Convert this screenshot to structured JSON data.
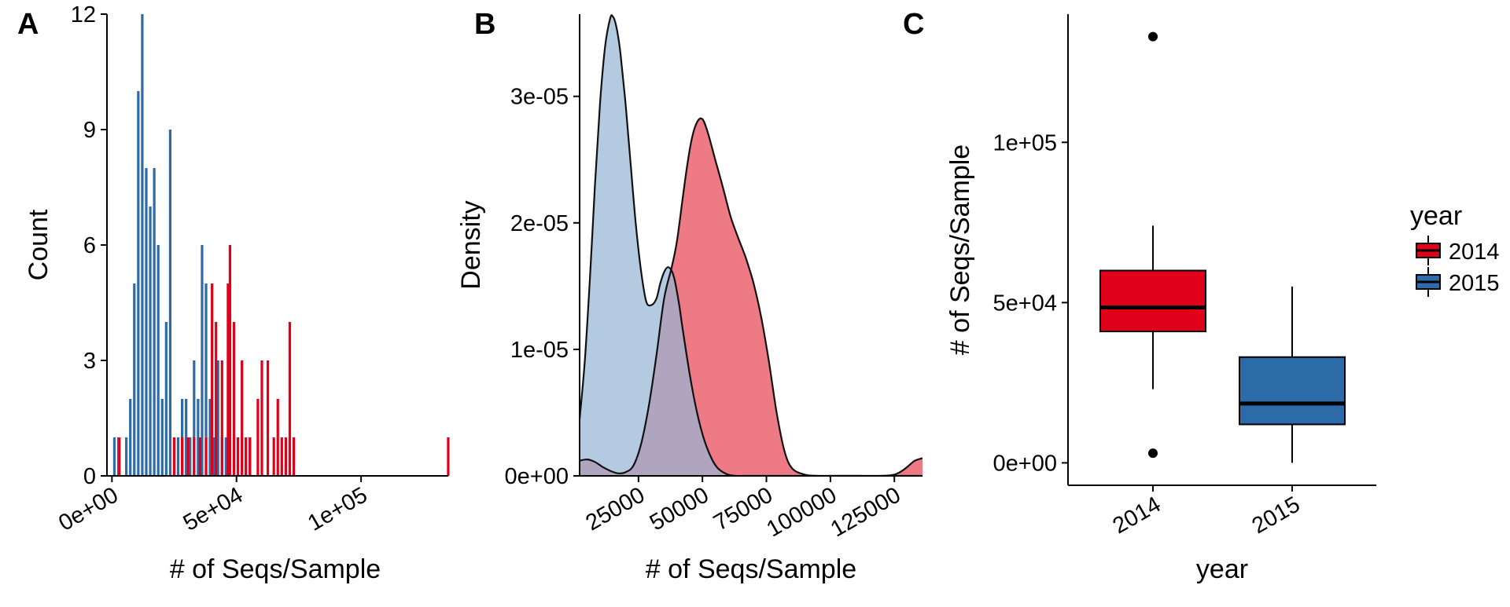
{
  "colors": {
    "y2014": "#e0001a",
    "y2015": "#2c6aa8",
    "density2014": "#ee7a86",
    "density2015": "#97b5d4",
    "overlap": "#8a7092"
  },
  "chart_data": [
    {
      "panel": "A",
      "type": "bar",
      "subtype": "histogram",
      "xlabel": "# of Seqs/Sample",
      "ylabel": "Count",
      "xlim": [
        -2000,
        135000
      ],
      "ylim": [
        0,
        12
      ],
      "x_ticks": [
        0,
        50000,
        100000
      ],
      "x_tick_labels": [
        "0e+00",
        "5e+04",
        "1e+05"
      ],
      "y_ticks": [
        0,
        3,
        6,
        9,
        12
      ],
      "y_tick_labels": [
        "0",
        "3",
        "6",
        "9",
        "12"
      ],
      "series": [
        {
          "name": "2015",
          "color_key": "y2015",
          "x": [
            0,
            1600,
            3200,
            4800,
            6400,
            8000,
            9600,
            11200,
            12800,
            14400,
            16000,
            17600,
            19200,
            20800,
            22400,
            24000,
            25600,
            27200,
            28800,
            30400,
            32000,
            33600,
            35200,
            36800,
            38400,
            40000,
            41600,
            43200,
            44800,
            46400,
            48000,
            49600,
            51200,
            52800,
            54400
          ],
          "values": [
            1,
            1,
            0,
            1,
            2,
            5,
            10,
            12,
            8,
            7,
            8,
            6,
            2,
            4,
            9,
            1,
            1,
            2,
            2,
            1,
            3,
            2,
            6,
            5,
            2,
            1,
            3,
            1,
            1,
            1,
            1,
            1,
            1,
            1,
            1
          ]
        },
        {
          "name": "2014",
          "color_key": "y2014",
          "x": [
            2000,
            24000,
            27200,
            29600,
            32000,
            34400,
            36800,
            39200,
            40800,
            43200,
            45600,
            46400,
            48000,
            49600,
            51200,
            52800,
            54400,
            57600,
            59200,
            61600,
            64000,
            65600,
            67200,
            68800,
            70400,
            72000,
            134000
          ],
          "values": [
            1,
            1,
            1,
            1,
            1,
            1,
            1,
            5,
            4,
            3,
            5,
            6,
            4,
            1,
            3,
            1,
            1,
            2,
            3,
            3,
            1,
            2,
            1,
            1,
            4,
            1,
            1
          ]
        }
      ]
    },
    {
      "panel": "B",
      "type": "area",
      "subtype": "density",
      "xlabel": "# of Seqs/Sample",
      "ylabel": "Density",
      "xlim": [
        2000,
        136000
      ],
      "ylim": [
        0,
        3.65e-05
      ],
      "x_ticks": [
        25000,
        50000,
        75000,
        100000,
        125000
      ],
      "x_tick_labels": [
        "25000",
        "50000",
        "75000",
        "100000",
        "125000"
      ],
      "y_ticks": [
        0,
        1e-05,
        2e-05,
        3e-05
      ],
      "y_tick_labels": [
        "0e+00",
        "1e-05",
        "2e-05",
        "3e-05"
      ],
      "series": [
        {
          "name": "2014",
          "color_key": "density2014",
          "x": [
            2000,
            5000,
            8000,
            11000,
            14000,
            17000,
            20000,
            23000,
            26000,
            29000,
            32000,
            35000,
            38000,
            40000,
            42000,
            44000,
            46000,
            48000,
            50000,
            52000,
            55000,
            58000,
            61000,
            64000,
            67000,
            70000,
            73000,
            76000,
            79000,
            82000,
            85000,
            90000,
            95000,
            100000,
            110000,
            120000,
            125000,
            128000,
            130000,
            133000,
            136000
          ],
          "values": [
            1.2e-06,
            1.3e-06,
            1.1e-06,
            7e-07,
            4e-07,
            2e-07,
            3e-07,
            8e-07,
            2.5e-06,
            5.5e-06,
            9.5e-06,
            1.4e-05,
            1.65e-05,
            1.85e-05,
            2.15e-05,
            2.45e-05,
            2.68e-05,
            2.8e-05,
            2.82e-05,
            2.72e-05,
            2.5e-05,
            2.28e-05,
            2.05e-05,
            1.88e-05,
            1.72e-05,
            1.52e-05,
            1.25e-05,
            9e-06,
            5e-06,
            2e-06,
            6e-07,
            1e-07,
            0,
            0,
            0,
            0,
            1e-07,
            4e-07,
            7e-07,
            1.2e-06,
            1.4e-06
          ]
        },
        {
          "name": "2015",
          "color_key": "density2015",
          "x": [
            2000,
            4000,
            6000,
            8000,
            10000,
            12000,
            14000,
            15000,
            16000,
            17000,
            18000,
            20000,
            22000,
            24000,
            26000,
            28000,
            30000,
            32000,
            33500,
            35000,
            36500,
            38000,
            39000,
            40000,
            41000,
            42000,
            44000,
            46000,
            48000,
            50000,
            52000,
            54000,
            56000,
            58000,
            60000,
            63000,
            66000,
            70000,
            80000,
            100000,
            136000
          ],
          "values": [
            4.5e-06,
            9e-06,
            1.55e-05,
            2.3e-05,
            2.95e-05,
            3.4e-05,
            3.62e-05,
            3.63e-05,
            3.58e-05,
            3.48e-05,
            3.33e-05,
            2.93e-05,
            2.45e-05,
            1.98e-05,
            1.62e-05,
            1.38e-05,
            1.35e-05,
            1.4e-05,
            1.52e-05,
            1.61e-05,
            1.65e-05,
            1.62e-05,
            1.56e-05,
            1.46e-05,
            1.34e-05,
            1.2e-05,
            9.3e-06,
            6.9e-06,
            4.9e-06,
            3.3e-06,
            2.1e-06,
            1.2e-06,
            6e-07,
            3e-07,
            1e-07,
            0,
            0,
            0,
            0,
            0,
            0
          ]
        }
      ]
    },
    {
      "panel": "C",
      "type": "box",
      "xlabel": "year",
      "ylabel": "# of Seqs/Sample",
      "categories": [
        "2014",
        "2015"
      ],
      "ylim": [
        -7000,
        140000
      ],
      "y_ticks": [
        0,
        50000,
        100000
      ],
      "y_tick_labels": [
        "0e+00",
        "5e+04",
        "1e+05"
      ],
      "boxes": [
        {
          "category": "2014",
          "color_key": "y2014",
          "whisker_low": 23000,
          "q1": 41000,
          "median": 48500,
          "q3": 60000,
          "whisker_high": 74000,
          "outliers": [
            3000,
            133000
          ]
        },
        {
          "category": "2015",
          "color_key": "y2015",
          "whisker_low": 0,
          "q1": 12000,
          "median": 18500,
          "q3": 33000,
          "whisker_high": 55000,
          "outliers": []
        }
      ],
      "legend": {
        "title": "year",
        "entries": [
          "2014",
          "2015"
        ],
        "placement": "right"
      }
    }
  ],
  "panel_labels": [
    "A",
    "B",
    "C"
  ]
}
